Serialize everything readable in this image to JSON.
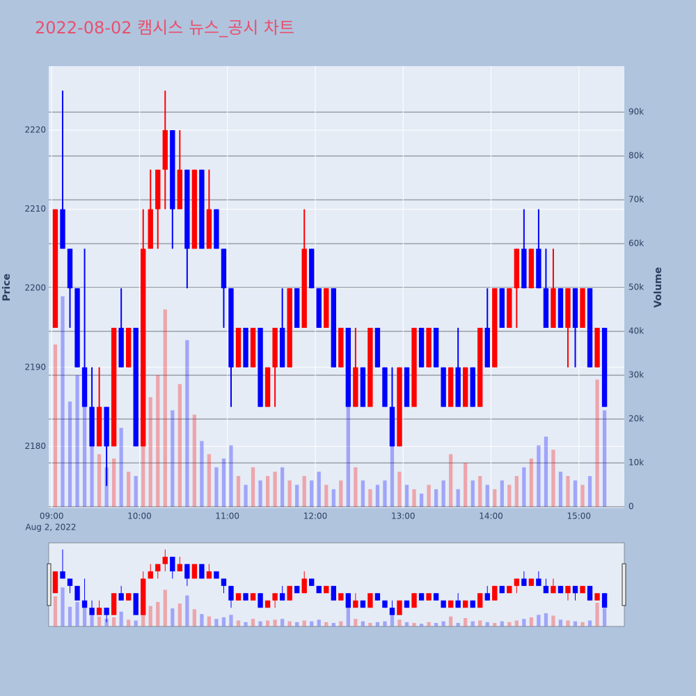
{
  "chart_data": {
    "type": "candlestick",
    "title": "2022-08-02 캠시스 뉴스_공시 차트",
    "x": [
      "09:00",
      "09:05",
      "09:10",
      "09:15",
      "09:20",
      "09:25",
      "09:30",
      "09:35",
      "09:40",
      "09:45",
      "09:50",
      "09:55",
      "10:00",
      "10:05",
      "10:10",
      "10:15",
      "10:20",
      "10:25",
      "10:30",
      "10:35",
      "10:40",
      "10:45",
      "10:50",
      "10:55",
      "11:00",
      "11:05",
      "11:10",
      "11:15",
      "11:20",
      "11:25",
      "11:30",
      "11:35",
      "11:40",
      "11:45",
      "11:50",
      "11:55",
      "12:00",
      "12:05",
      "12:10",
      "12:15",
      "12:20",
      "12:25",
      "12:30",
      "12:35",
      "12:40",
      "12:45",
      "12:50",
      "12:55",
      "13:00",
      "13:05",
      "13:10",
      "13:15",
      "13:20",
      "13:25",
      "13:30",
      "13:35",
      "13:40",
      "13:45",
      "13:50",
      "13:55",
      "14:00",
      "14:05",
      "14:10",
      "14:15",
      "14:20",
      "14:25",
      "14:30",
      "14:35",
      "14:40",
      "14:45",
      "14:50",
      "14:55",
      "15:00",
      "15:05",
      "15:10",
      "15:15"
    ],
    "open": [
      2195,
      2210,
      2205,
      2200,
      2190,
      2185,
      2180,
      2185,
      2180,
      2195,
      2190,
      2195,
      2180,
      2205,
      2210,
      2215,
      2220,
      2210,
      2215,
      2205,
      2215,
      2205,
      2210,
      2205,
      2200,
      2190,
      2195,
      2190,
      2195,
      2185,
      2190,
      2195,
      2190,
      2200,
      2195,
      2205,
      2200,
      2195,
      2200,
      2190,
      2195,
      2185,
      2190,
      2185,
      2195,
      2190,
      2185,
      2180,
      2190,
      2185,
      2195,
      2190,
      2195,
      2190,
      2185,
      2190,
      2185,
      2190,
      2185,
      2195,
      2190,
      2200,
      2195,
      2200,
      2205,
      2200,
      2205,
      2200,
      2195,
      2200,
      2195,
      2200,
      2195,
      2200,
      2190,
      2195
    ],
    "high": [
      2210,
      2225,
      2205,
      2200,
      2205,
      2190,
      2190,
      2185,
      2195,
      2200,
      2195,
      2195,
      2210,
      2215,
      2215,
      2225,
      2220,
      2220,
      2215,
      2215,
      2215,
      2215,
      2210,
      2205,
      2200,
      2195,
      2195,
      2195,
      2195,
      2190,
      2195,
      2200,
      2200,
      2200,
      2210,
      2205,
      2200,
      2200,
      2200,
      2195,
      2195,
      2195,
      2190,
      2195,
      2195,
      2190,
      2190,
      2190,
      2190,
      2195,
      2195,
      2195,
      2195,
      2190,
      2190,
      2195,
      2190,
      2190,
      2195,
      2200,
      2200,
      2200,
      2200,
      2205,
      2210,
      2205,
      2210,
      2205,
      2205,
      2200,
      2200,
      2200,
      2200,
      2200,
      2195,
      2195
    ],
    "low": [
      2195,
      2205,
      2195,
      2190,
      2185,
      2180,
      2180,
      2175,
      2180,
      2190,
      2190,
      2180,
      2180,
      2205,
      2205,
      2210,
      2205,
      2210,
      2200,
      2205,
      2205,
      2205,
      2205,
      2195,
      2185,
      2190,
      2190,
      2190,
      2185,
      2185,
      2185,
      2190,
      2190,
      2195,
      2195,
      2200,
      2195,
      2195,
      2190,
      2190,
      2185,
      2185,
      2185,
      2185,
      2190,
      2185,
      2180,
      2180,
      2185,
      2185,
      2190,
      2190,
      2190,
      2185,
      2185,
      2185,
      2185,
      2185,
      2185,
      2190,
      2190,
      2195,
      2195,
      2195,
      2200,
      2200,
      2200,
      2195,
      2195,
      2195,
      2190,
      2190,
      2195,
      2190,
      2190,
      2185
    ],
    "close": [
      2210,
      2205,
      2200,
      2190,
      2185,
      2180,
      2185,
      2180,
      2195,
      2190,
      2195,
      2180,
      2205,
      2210,
      2215,
      2220,
      2210,
      2215,
      2205,
      2215,
      2205,
      2210,
      2205,
      2200,
      2190,
      2195,
      2190,
      2195,
      2185,
      2190,
      2195,
      2190,
      2200,
      2195,
      2205,
      2200,
      2195,
      2200,
      2190,
      2195,
      2185,
      2190,
      2185,
      2195,
      2190,
      2185,
      2180,
      2190,
      2185,
      2195,
      2190,
      2195,
      2190,
      2185,
      2190,
      2185,
      2190,
      2185,
      2195,
      2190,
      2200,
      2195,
      2200,
      2205,
      2200,
      2205,
      2200,
      2195,
      2200,
      2195,
      2200,
      2195,
      2200,
      2190,
      2195,
      2185
    ],
    "volume": [
      37000,
      48000,
      24000,
      30000,
      28000,
      14000,
      12000,
      9000,
      11000,
      18000,
      8000,
      7000,
      31000,
      25000,
      30000,
      45000,
      22000,
      28000,
      38000,
      21000,
      15000,
      12000,
      9000,
      11000,
      14000,
      7000,
      5000,
      9000,
      6000,
      7000,
      8000,
      9000,
      6000,
      5000,
      7000,
      6000,
      8000,
      5000,
      4000,
      6000,
      24000,
      9000,
      6000,
      4000,
      5000,
      6000,
      16000,
      8000,
      5000,
      4000,
      3000,
      5000,
      4000,
      6000,
      12000,
      4000,
      10000,
      6000,
      7000,
      5000,
      4000,
      6000,
      5000,
      7000,
      9000,
      11000,
      14000,
      16000,
      13000,
      8000,
      7000,
      6000,
      5000,
      7000,
      29000,
      22000
    ],
    "increasing_color": "#ff0000",
    "decreasing_color": "#0000ff",
    "xlim": [
      "08:58",
      "15:31"
    ],
    "xticks": [
      "09:00",
      "10:00",
      "11:00",
      "12:00",
      "13:00",
      "14:00",
      "15:00"
    ],
    "x_date_label": "Aug 2, 2022",
    "ylabel": "Price",
    "y2label": "Volume",
    "ylim": [
      2172.2,
      2228.1
    ],
    "yticks": [
      2180,
      2190,
      2200,
      2210,
      2220
    ],
    "y2lim": [
      -300,
      100500
    ],
    "y2ticks": [
      0,
      {
        "value": 10000,
        "label": "10k"
      },
      {
        "value": 20000,
        "label": "20k"
      },
      {
        "value": 30000,
        "label": "30k"
      },
      {
        "value": 40000,
        "label": "40k"
      },
      {
        "value": 50000,
        "label": "50k"
      },
      {
        "value": 60000,
        "label": "60k"
      },
      {
        "value": 70000,
        "label": "70k"
      },
      {
        "value": 80000,
        "label": "80k"
      },
      {
        "value": 90000,
        "label": "90k"
      }
    ],
    "grid": true,
    "rangeslider": true
  }
}
